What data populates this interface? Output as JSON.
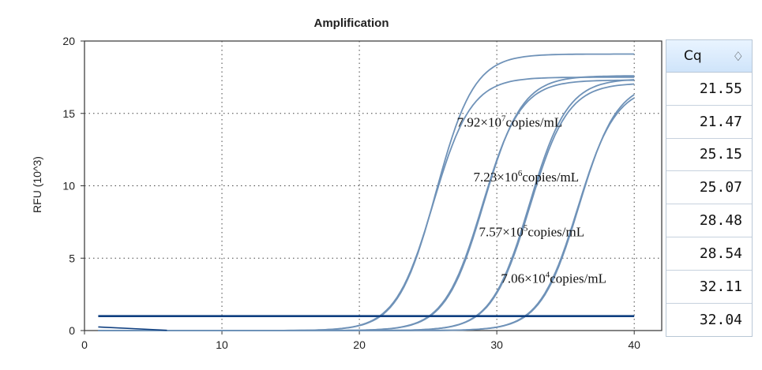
{
  "chart_data": {
    "type": "line",
    "title": "Amplification",
    "xlabel": "",
    "ylabel": "RFU (10^3)",
    "xlim": [
      0,
      42
    ],
    "ylim": [
      0,
      20
    ],
    "x_ticks": [
      "0",
      "10",
      "20",
      "30",
      "40"
    ],
    "y_ticks": [
      "0",
      "5",
      "10",
      "15",
      "20"
    ],
    "grid": true,
    "threshold": 1.0,
    "x_start": 1,
    "x_end": 40,
    "series": [
      {
        "cq": 21.55,
        "plateau": 19.1
      },
      {
        "cq": 21.47,
        "plateau": 17.5
      },
      {
        "cq": 25.15,
        "plateau": 17.6
      },
      {
        "cq": 25.07,
        "plateau": 17.3
      },
      {
        "cq": 28.48,
        "plateau": 17.4
      },
      {
        "cq": 28.54,
        "plateau": 17.1
      },
      {
        "cq": 32.11,
        "plateau": 17.2
      },
      {
        "cq": 32.04,
        "plateau": 16.9
      }
    ],
    "annotations": [
      {
        "base": "7.92×10",
        "exp": "7",
        "unit": "copies/mL",
        "x": 27.1,
        "y": 14.1
      },
      {
        "base": "7.23×10",
        "exp": "6",
        "unit": "copies/mL",
        "x": 28.3,
        "y": 10.3
      },
      {
        "base": "7.57×10",
        "exp": "5",
        "unit": "copies/mL",
        "x": 28.7,
        "y": 6.5
      },
      {
        "base": "7.06×10",
        "exp": "4",
        "unit": "copies/mL",
        "x": 30.3,
        "y": 3.3
      }
    ],
    "line_color": "#6f92b8",
    "threshold_color": "#0f3f80"
  },
  "cq_table": {
    "header": "Cq",
    "sort_icon": "sort-diamond-icon",
    "values": [
      "21.55",
      "21.47",
      "25.15",
      "25.07",
      "28.48",
      "28.54",
      "32.11",
      "32.04"
    ]
  }
}
